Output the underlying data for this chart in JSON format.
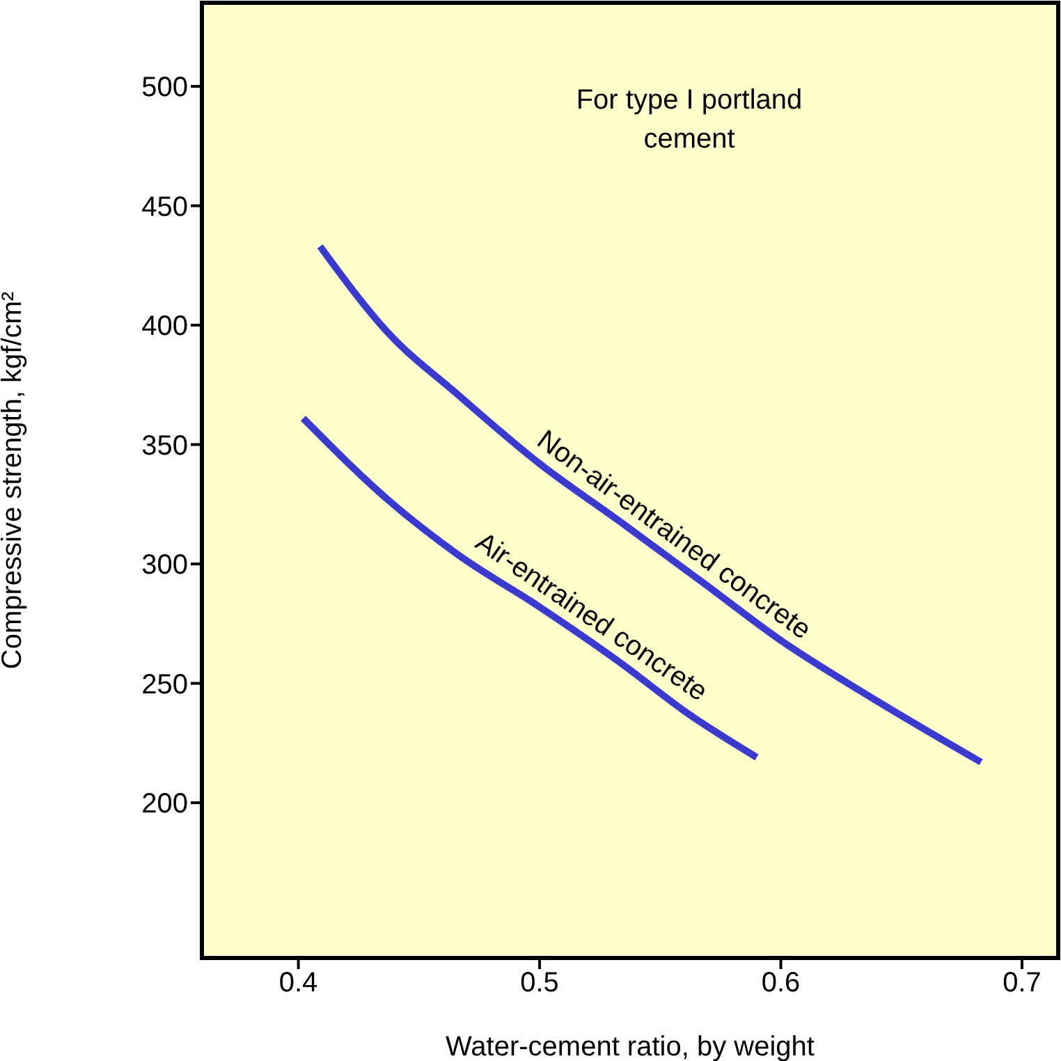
{
  "chart_data": {
    "type": "line",
    "xlabel": "Water-cement ratio, by weight",
    "ylabel": "Compressive strength, kgf/cm²",
    "annotations": [
      "For type I portland cement"
    ],
    "series": [
      {
        "name": "Non-air-entrained concrete",
        "color": "#3a3ad0",
        "x": [
          0.409,
          0.437,
          0.466,
          0.5,
          0.533,
          0.568,
          0.6,
          0.636,
          0.683
        ],
        "values": [
          433,
          397,
          371,
          342,
          318,
          292,
          268,
          245,
          217
        ]
      },
      {
        "name": "Air-entrained concrete",
        "color": "#3a3ad0",
        "x": [
          0.402,
          0.437,
          0.466,
          0.5,
          0.533,
          0.562,
          0.59
        ],
        "values": [
          361,
          327,
          304,
          282,
          259,
          237,
          219
        ]
      }
    ],
    "xlim": [
      0.36,
      0.715
    ],
    "xticks": [
      0.4,
      0.5,
      0.6,
      0.7
    ],
    "ylim": [
      135,
      535
    ],
    "yticks": [
      200,
      250,
      300,
      350,
      400,
      450,
      500
    ],
    "legend": false,
    "marker": "none",
    "line_style": "solid"
  }
}
